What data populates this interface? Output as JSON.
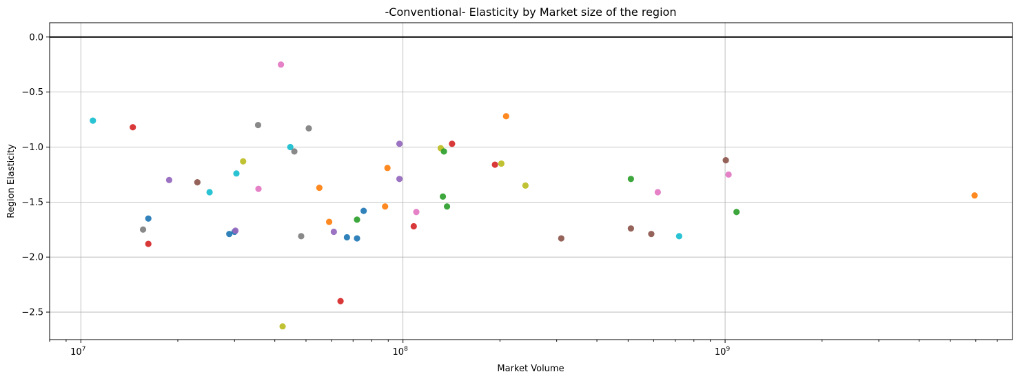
{
  "chart_data": {
    "type": "scatter",
    "title": "-Conventional- Elasticity by Market size of the region",
    "xlabel": "Market Volume",
    "ylabel": "Region Elasticity",
    "xscale": "log",
    "xlim": [
      8000000,
      7800000000
    ],
    "ylim": [
      -2.75,
      0.13
    ],
    "grid": true,
    "reference_line": {
      "y": 0.0
    },
    "x_ticks": [
      {
        "value": 10000000,
        "base": "10",
        "exp": "7"
      },
      {
        "value": 100000000,
        "base": "10",
        "exp": "8"
      },
      {
        "value": 1000000000,
        "base": "10",
        "exp": "9"
      }
    ],
    "y_ticks": [
      {
        "value": 0.0,
        "label": "0.0"
      },
      {
        "value": -0.5,
        "label": "−0.5"
      },
      {
        "value": -1.0,
        "label": "−1.0"
      },
      {
        "value": -1.5,
        "label": "−1.5"
      },
      {
        "value": -2.0,
        "label": "−2.0"
      },
      {
        "value": -2.5,
        "label": "−2.5"
      }
    ],
    "points": [
      {
        "x": 10900000,
        "y": -0.76,
        "color": "#17becf"
      },
      {
        "x": 14500000,
        "y": -0.82,
        "color": "#d62728"
      },
      {
        "x": 15600000,
        "y": -1.75,
        "color": "#7f7f7f"
      },
      {
        "x": 16200000,
        "y": -1.65,
        "color": "#1f77b4"
      },
      {
        "x": 16200000,
        "y": -1.88,
        "color": "#d62728"
      },
      {
        "x": 18800000,
        "y": -1.3,
        "color": "#9467bd"
      },
      {
        "x": 23000000,
        "y": -1.32,
        "color": "#8c564b"
      },
      {
        "x": 25100000,
        "y": -1.41,
        "color": "#17becf"
      },
      {
        "x": 28900000,
        "y": -1.79,
        "color": "#1f77b4"
      },
      {
        "x": 30000000,
        "y": -1.77,
        "color": "#1f77b4"
      },
      {
        "x": 30200000,
        "y": -1.76,
        "color": "#9467bd"
      },
      {
        "x": 30400000,
        "y": -1.24,
        "color": "#17becf"
      },
      {
        "x": 31900000,
        "y": -1.13,
        "color": "#bcbd22"
      },
      {
        "x": 35500000,
        "y": -0.8,
        "color": "#7f7f7f"
      },
      {
        "x": 35600000,
        "y": -1.38,
        "color": "#e377c2"
      },
      {
        "x": 41800000,
        "y": -0.25,
        "color": "#e377c2"
      },
      {
        "x": 42300000,
        "y": -2.63,
        "color": "#bcbd22"
      },
      {
        "x": 44700000,
        "y": -1.0,
        "color": "#17becf"
      },
      {
        "x": 46000000,
        "y": -1.04,
        "color": "#7f7f7f"
      },
      {
        "x": 48300000,
        "y": -1.81,
        "color": "#7f7f7f"
      },
      {
        "x": 51000000,
        "y": -0.83,
        "color": "#7f7f7f"
      },
      {
        "x": 55000000,
        "y": -1.37,
        "color": "#ff7f0e"
      },
      {
        "x": 59000000,
        "y": -1.68,
        "color": "#ff7f0e"
      },
      {
        "x": 61000000,
        "y": -1.77,
        "color": "#9467bd"
      },
      {
        "x": 64000000,
        "y": -2.4,
        "color": "#d62728"
      },
      {
        "x": 67000000,
        "y": -1.82,
        "color": "#1f77b4"
      },
      {
        "x": 72000000,
        "y": -1.83,
        "color": "#1f77b4"
      },
      {
        "x": 72000000,
        "y": -1.66,
        "color": "#2ca02c"
      },
      {
        "x": 75500000,
        "y": -1.58,
        "color": "#1f77b4"
      },
      {
        "x": 88000000,
        "y": -1.54,
        "color": "#ff7f0e"
      },
      {
        "x": 89500000,
        "y": -1.19,
        "color": "#ff7f0e"
      },
      {
        "x": 97500000,
        "y": -0.97,
        "color": "#9467bd"
      },
      {
        "x": 97500000,
        "y": -1.29,
        "color": "#9467bd"
      },
      {
        "x": 108000000,
        "y": -1.72,
        "color": "#d62728"
      },
      {
        "x": 110000000,
        "y": -1.59,
        "color": "#e377c2"
      },
      {
        "x": 131000000,
        "y": -1.01,
        "color": "#bcbd22"
      },
      {
        "x": 134000000,
        "y": -1.04,
        "color": "#2ca02c"
      },
      {
        "x": 133000000,
        "y": -1.45,
        "color": "#2ca02c"
      },
      {
        "x": 137000000,
        "y": -1.54,
        "color": "#2ca02c"
      },
      {
        "x": 142000000,
        "y": -0.97,
        "color": "#d62728"
      },
      {
        "x": 193000000,
        "y": -1.16,
        "color": "#d62728"
      },
      {
        "x": 202000000,
        "y": -1.15,
        "color": "#bcbd22"
      },
      {
        "x": 209000000,
        "y": -0.72,
        "color": "#ff7f0e"
      },
      {
        "x": 240000000,
        "y": -1.35,
        "color": "#bcbd22"
      },
      {
        "x": 310000000,
        "y": -1.83,
        "color": "#8c564b"
      },
      {
        "x": 510000000,
        "y": -1.29,
        "color": "#2ca02c"
      },
      {
        "x": 510000000,
        "y": -1.74,
        "color": "#8c564b"
      },
      {
        "x": 590000000,
        "y": -1.79,
        "color": "#8c564b"
      },
      {
        "x": 618000000,
        "y": -1.41,
        "color": "#e377c2"
      },
      {
        "x": 720000000,
        "y": -1.81,
        "color": "#17becf"
      },
      {
        "x": 1005000000,
        "y": -1.12,
        "color": "#8c564b"
      },
      {
        "x": 1025000000,
        "y": -1.25,
        "color": "#e377c2"
      },
      {
        "x": 1085000000,
        "y": -1.59,
        "color": "#2ca02c"
      },
      {
        "x": 5950000000,
        "y": -1.44,
        "color": "#ff7f0e"
      }
    ]
  }
}
